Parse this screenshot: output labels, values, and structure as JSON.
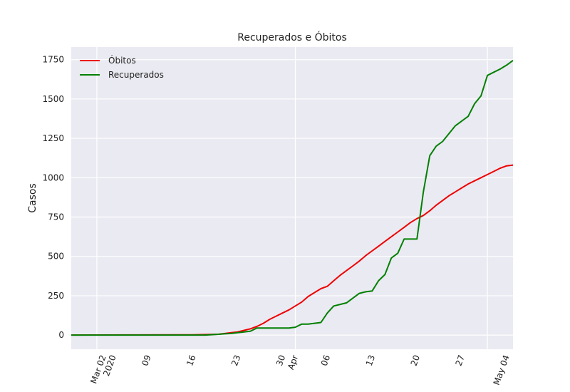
{
  "chart_data": {
    "type": "line",
    "title": "Recuperados e Óbitos",
    "xlabel": "",
    "ylabel": "Casos",
    "x_range": [
      "2020-02-26",
      "2020-05-05"
    ],
    "ylim": [
      -90,
      1830
    ],
    "y_ticks": [
      0,
      250,
      500,
      750,
      1000,
      1250,
      1500,
      1750
    ],
    "x_ticks": [
      {
        "date": "2020-03-02",
        "label": "Mar 02",
        "label2": "2020"
      },
      {
        "date": "2020-03-09",
        "label": "09"
      },
      {
        "date": "2020-03-16",
        "label": "16"
      },
      {
        "date": "2020-03-23",
        "label": "23"
      },
      {
        "date": "2020-03-30",
        "label": "30"
      },
      {
        "date": "2020-04-01",
        "label": "Apr"
      },
      {
        "date": "2020-04-06",
        "label": "06"
      },
      {
        "date": "2020-04-13",
        "label": "13"
      },
      {
        "date": "2020-04-20",
        "label": "20"
      },
      {
        "date": "2020-04-27",
        "label": "27"
      },
      {
        "date": "2020-05-04",
        "label": "May 04"
      }
    ],
    "major_gridlines": [
      "2020-03-01",
      "2020-04-01",
      "2020-05-01"
    ],
    "grid": true,
    "legend_position": "top-left",
    "series": [
      {
        "name": "Óbitos",
        "color": "#ee0000",
        "points": [
          [
            "2020-02-26",
            0
          ],
          [
            "2020-03-16",
            2
          ],
          [
            "2020-03-20",
            5
          ],
          [
            "2020-03-21",
            10
          ],
          [
            "2020-03-22",
            15
          ],
          [
            "2020-03-23",
            20
          ],
          [
            "2020-03-24",
            30
          ],
          [
            "2020-03-25",
            40
          ],
          [
            "2020-03-26",
            55
          ],
          [
            "2020-03-27",
            75
          ],
          [
            "2020-03-28",
            100
          ],
          [
            "2020-03-29",
            120
          ],
          [
            "2020-03-30",
            140
          ],
          [
            "2020-03-31",
            160
          ],
          [
            "2020-04-01",
            185
          ],
          [
            "2020-04-02",
            210
          ],
          [
            "2020-04-03",
            245
          ],
          [
            "2020-04-04",
            270
          ],
          [
            "2020-04-05",
            295
          ],
          [
            "2020-04-06",
            310
          ],
          [
            "2020-04-07",
            345
          ],
          [
            "2020-04-08",
            380
          ],
          [
            "2020-04-09",
            410
          ],
          [
            "2020-04-10",
            440
          ],
          [
            "2020-04-11",
            470
          ],
          [
            "2020-04-12",
            505
          ],
          [
            "2020-04-13",
            535
          ],
          [
            "2020-04-14",
            565
          ],
          [
            "2020-04-15",
            595
          ],
          [
            "2020-04-16",
            625
          ],
          [
            "2020-04-17",
            655
          ],
          [
            "2020-04-18",
            685
          ],
          [
            "2020-04-19",
            715
          ],
          [
            "2020-04-20",
            740
          ],
          [
            "2020-04-21",
            760
          ],
          [
            "2020-04-22",
            790
          ],
          [
            "2020-04-23",
            825
          ],
          [
            "2020-04-24",
            855
          ],
          [
            "2020-04-25",
            885
          ],
          [
            "2020-04-26",
            910
          ],
          [
            "2020-04-27",
            935
          ],
          [
            "2020-04-28",
            960
          ],
          [
            "2020-04-29",
            980
          ],
          [
            "2020-04-30",
            1000
          ],
          [
            "2020-05-01",
            1020
          ],
          [
            "2020-05-02",
            1040
          ],
          [
            "2020-05-03",
            1060
          ],
          [
            "2020-05-04",
            1075
          ],
          [
            "2020-05-05",
            1080
          ]
        ]
      },
      {
        "name": "Recuperados",
        "color": "#008000",
        "points": [
          [
            "2020-02-26",
            0
          ],
          [
            "2020-03-18",
            0
          ],
          [
            "2020-03-20",
            5
          ],
          [
            "2020-03-21",
            8
          ],
          [
            "2020-03-22",
            10
          ],
          [
            "2020-03-23",
            15
          ],
          [
            "2020-03-24",
            20
          ],
          [
            "2020-03-25",
            25
          ],
          [
            "2020-03-26",
            45
          ],
          [
            "2020-03-31",
            45
          ],
          [
            "2020-04-01",
            50
          ],
          [
            "2020-04-02",
            70
          ],
          [
            "2020-04-03",
            70
          ],
          [
            "2020-04-04",
            75
          ],
          [
            "2020-04-05",
            80
          ],
          [
            "2020-04-06",
            140
          ],
          [
            "2020-04-07",
            185
          ],
          [
            "2020-04-08",
            195
          ],
          [
            "2020-04-09",
            205
          ],
          [
            "2020-04-10",
            235
          ],
          [
            "2020-04-11",
            265
          ],
          [
            "2020-04-12",
            275
          ],
          [
            "2020-04-13",
            280
          ],
          [
            "2020-04-14",
            345
          ],
          [
            "2020-04-15",
            385
          ],
          [
            "2020-04-16",
            490
          ],
          [
            "2020-04-17",
            520
          ],
          [
            "2020-04-18",
            610
          ],
          [
            "2020-04-19",
            610
          ],
          [
            "2020-04-20",
            610
          ],
          [
            "2020-04-21",
            910
          ],
          [
            "2020-04-22",
            1140
          ],
          [
            "2020-04-23",
            1200
          ],
          [
            "2020-04-24",
            1230
          ],
          [
            "2020-04-25",
            1280
          ],
          [
            "2020-04-26",
            1330
          ],
          [
            "2020-04-27",
            1360
          ],
          [
            "2020-04-28",
            1390
          ],
          [
            "2020-04-29",
            1470
          ],
          [
            "2020-04-30",
            1520
          ],
          [
            "2020-05-01",
            1650
          ],
          [
            "2020-05-02",
            1670
          ],
          [
            "2020-05-03",
            1690
          ],
          [
            "2020-05-04",
            1715
          ],
          [
            "2020-05-05",
            1745
          ]
        ]
      }
    ]
  }
}
